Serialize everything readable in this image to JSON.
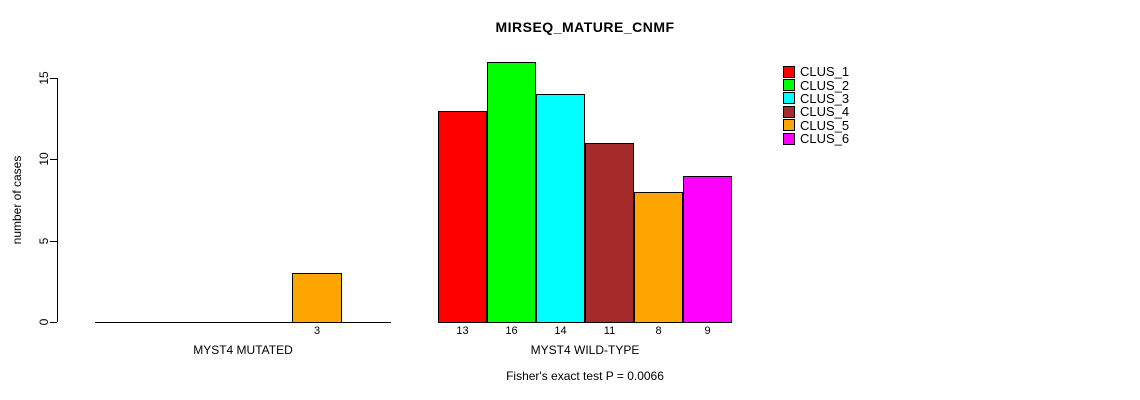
{
  "chart_data": {
    "type": "bar",
    "title": "MIRSEQ_MATURE_CNMF",
    "ylabel": "number of cases",
    "yticks": [
      0,
      5,
      10,
      15
    ],
    "ylim": [
      0,
      15
    ],
    "annotation": "Fisher's exact test P = 0.0066",
    "categories": [
      "CLUS_1",
      "CLUS_2",
      "CLUS_3",
      "CLUS_4",
      "CLUS_5",
      "CLUS_6"
    ],
    "colors": [
      "#FF0000",
      "#00FF00",
      "#00FFFF",
      "#A52A2A",
      "#FFA500",
      "#FF00FF"
    ],
    "groups": [
      {
        "label": "MYST4 MUTATED",
        "values": [
          0,
          0,
          0,
          0,
          3,
          0
        ]
      },
      {
        "label": "MYST4 WILD-TYPE",
        "values": [
          13,
          16,
          14,
          11,
          8,
          9
        ]
      }
    ],
    "legend": {
      "position": "right",
      "entries": [
        {
          "label": "CLUS_1",
          "color": "#FF0000"
        },
        {
          "label": "CLUS_2",
          "color": "#00FF00"
        },
        {
          "label": "CLUS_3",
          "color": "#00FFFF"
        },
        {
          "label": "CLUS_4",
          "color": "#A52A2A"
        },
        {
          "label": "CLUS_5",
          "color": "#FFA500"
        },
        {
          "label": "CLUS_6",
          "color": "#FF00FF"
        }
      ]
    }
  }
}
